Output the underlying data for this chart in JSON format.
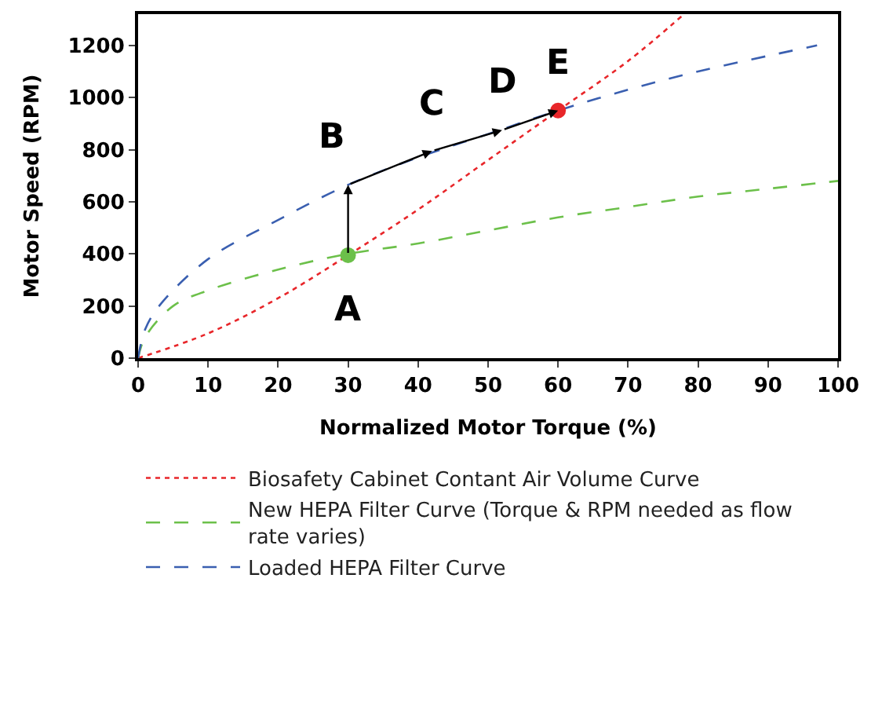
{
  "chart_data": {
    "type": "line",
    "xlabel": "Normalized Motor Torque (%)",
    "ylabel": "Motor Speed (RPM)",
    "xlim": [
      0,
      100
    ],
    "ylim": [
      0,
      1320
    ],
    "xticks": [
      0,
      10,
      20,
      30,
      40,
      50,
      60,
      70,
      80,
      90,
      100
    ],
    "yticks": [
      0,
      200,
      400,
      600,
      800,
      1000,
      1200
    ],
    "legend": "bottom",
    "marker": "none",
    "series": [
      {
        "name": "Biosafety Cabinet Contant Air Volume Curve",
        "color": "#e8262a",
        "line_style": "dotted",
        "x": [
          0,
          10,
          20,
          30,
          40,
          50,
          60,
          70,
          78
        ],
        "values": [
          0,
          95,
          230,
          395,
          570,
          760,
          950,
          1140,
          1320
        ]
      },
      {
        "name": "New HEPA Filter Curve (Torque & RPM needed as flow rate varies)",
        "color": "#6cc04a",
        "line_style": "dashed",
        "x": [
          0,
          1,
          5,
          10,
          20,
          30,
          40,
          50,
          60,
          70,
          80,
          90,
          100
        ],
        "values": [
          0,
          80,
          200,
          260,
          340,
          400,
          440,
          490,
          540,
          580,
          620,
          650,
          680
        ]
      },
      {
        "name": "Loaded HEPA Filter Curve",
        "color": "#3a5fb0",
        "line_style": "dashed",
        "x": [
          0,
          1,
          3,
          10,
          20,
          30,
          40,
          50,
          60,
          70,
          80,
          90,
          97
        ],
        "values": [
          0,
          110,
          200,
          380,
          530,
          665,
          770,
          860,
          950,
          1030,
          1100,
          1160,
          1200
        ]
      },
      {
        "type": "scatter",
        "color": "#6cc04a",
        "marker": "circle",
        "x": [
          30
        ],
        "values": [
          395
        ]
      },
      {
        "type": "scatter",
        "color": "#e8262a",
        "marker": "circle",
        "x": [
          60
        ],
        "values": [
          950
        ]
      }
    ],
    "annotations": [
      {
        "text": "A",
        "x": 30,
        "y": 395
      },
      {
        "text": "B",
        "x": 30,
        "y": 665
      },
      {
        "text": "C",
        "x": 42,
        "y": 795
      },
      {
        "text": "D",
        "x": 52,
        "y": 875
      },
      {
        "text": "E",
        "x": 60,
        "y": 950
      }
    ]
  }
}
